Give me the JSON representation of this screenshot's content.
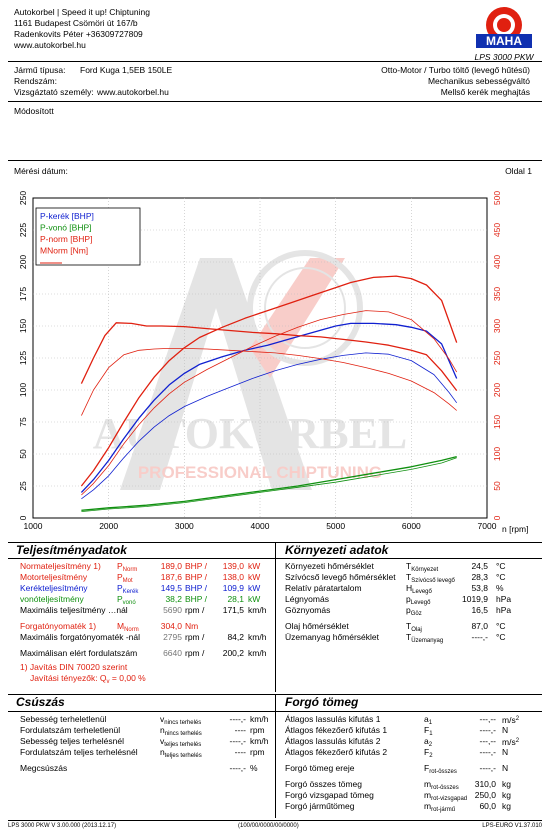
{
  "header": {
    "company_lines": [
      "Autokorbel | Speed it up! Chiptuning",
      "1161 Budapest Csömöri út 167/b",
      "Radenkovits Péter +36309727809",
      "www.autokorbel.hu"
    ],
    "logo_ring_text": "Maschinenbau Haldenwang",
    "logo_brand": "MAHA",
    "device": "LPS 3000 PKW"
  },
  "vehicle": {
    "type_label": "Jármű típusa:",
    "type_value": "Ford Kuga 1,5EB 150LE",
    "reg_label": "Rendszám:",
    "tester_label": "Vizsgáztató személy:",
    "tester_value": "www.autokorbel.hu",
    "engine": "Otto-Motor / Turbo töltő (levegő hűtésű)",
    "gearbox": "Mechanikus sebességváltó",
    "drive": "Mellső kerék meghajtás",
    "modified": "Módosított",
    "date_label": "Mérési dátum:",
    "page": "Oldal 1"
  },
  "chart_data": {
    "type": "line",
    "xlabel": "n [rpm]",
    "xlim": [
      1000,
      7000
    ],
    "ylim_left": [
      0,
      250
    ],
    "ylim_right": [
      0,
      500
    ],
    "x_ticks": [
      "1000",
      "2000",
      "3000",
      "4000",
      "5000",
      "6000",
      "7000"
    ],
    "y_ticks_left": [
      "0",
      "25",
      "50",
      "75",
      "100",
      "125",
      "150",
      "175",
      "200",
      "225",
      "250"
    ],
    "y_ticks_right": [
      "0",
      "50",
      "100",
      "150",
      "200",
      "250",
      "300",
      "350",
      "400",
      "450",
      "500"
    ],
    "legend": [
      {
        "label": "P-kerék [BHP]",
        "color": "#1020d0"
      },
      {
        "label": "P-vonó [BHP]",
        "color": "#109010"
      },
      {
        "label": "P-norm [BHP]",
        "color": "#e02010"
      },
      {
        "label": "MNorm [Nm]",
        "color": "#e02010"
      }
    ],
    "series": [
      {
        "name": "P-kerék [BHP]",
        "axis": "left",
        "color": "#1020d0",
        "width": 1.3,
        "x": [
          1640,
          1800,
          2000,
          2200,
          2400,
          2600,
          2800,
          3000,
          3200,
          3500,
          3800,
          4100,
          4400,
          4700,
          5000,
          5200,
          5500,
          5800,
          6000,
          6200,
          6400,
          6600
        ],
        "y": [
          20,
          30,
          45,
          62,
          78,
          92,
          104,
          113,
          120,
          126,
          131,
          135,
          140,
          145,
          150,
          152,
          152,
          151,
          149,
          146,
          136,
          109
        ]
      },
      {
        "name": "P-kerék (base)",
        "axis": "left",
        "color": "#1020d0",
        "width": 0.8,
        "x": [
          1640,
          1800,
          2000,
          2200,
          2400,
          2600,
          2800,
          3000,
          3300,
          3600,
          3900,
          4200,
          4500,
          4800,
          5100,
          5400,
          5700,
          6000,
          6300,
          6500,
          6600
        ],
        "y": [
          15,
          22,
          33,
          47,
          60,
          71,
          80,
          87,
          95,
          102,
          109,
          115,
          120,
          124,
          127,
          129,
          128,
          123,
          112,
          98,
          90
        ]
      },
      {
        "name": "P-norm [BHP]",
        "axis": "left",
        "color": "#e02010",
        "width": 1.3,
        "x": [
          1640,
          1800,
          2000,
          2200,
          2400,
          2600,
          2800,
          3000,
          3200,
          3500,
          3800,
          4100,
          4400,
          4700,
          5000,
          5200,
          5500,
          5800,
          6000,
          6200,
          6400,
          6600
        ],
        "y": [
          25,
          37,
          55,
          75,
          94,
          110,
          123,
          133,
          141,
          149,
          156,
          162,
          168,
          174,
          180,
          184,
          188,
          189,
          187,
          182,
          170,
          137
        ]
      },
      {
        "name": "P-norm (base)",
        "axis": "left",
        "color": "#e02010",
        "width": 0.8,
        "x": [
          1640,
          1800,
          2000,
          2200,
          2400,
          2600,
          2800,
          3000,
          3300,
          3600,
          3900,
          4200,
          4500,
          4800,
          5100,
          5400,
          5700,
          6000,
          6300,
          6500,
          6600
        ],
        "y": [
          18,
          27,
          41,
          58,
          73,
          86,
          97,
          106,
          116,
          125,
          134,
          142,
          149,
          155,
          159,
          162,
          161,
          155,
          140,
          124,
          114
        ]
      },
      {
        "name": "MNorm [Nm]",
        "axis": "right",
        "color": "#e02010",
        "width": 1.3,
        "x": [
          1640,
          1800,
          1950,
          2100,
          2300,
          2500,
          2700,
          3000,
          3300,
          3600,
          3900,
          4200,
          4500,
          4800,
          5100,
          5400,
          5700,
          6000,
          6200,
          6400,
          6600
        ],
        "y": [
          210,
          250,
          285,
          305,
          304,
          300,
          300,
          299,
          296,
          293,
          290,
          288,
          285,
          283,
          279,
          275,
          270,
          262,
          255,
          230,
          199
        ]
      },
      {
        "name": "MNorm (base)",
        "axis": "right",
        "color": "#e02010",
        "width": 0.8,
        "x": [
          1640,
          1800,
          2000,
          2200,
          2400,
          2600,
          2800,
          3000,
          3300,
          3600,
          3900,
          4200,
          4500,
          4800,
          5100,
          5400,
          5700,
          6000,
          6300,
          6500,
          6600
        ],
        "y": [
          160,
          200,
          235,
          255,
          262,
          264,
          265,
          265,
          264,
          262,
          260,
          258,
          254,
          249,
          243,
          235,
          226,
          214,
          196,
          178,
          168
        ]
      },
      {
        "name": "P-vonó [BHP]",
        "axis": "left",
        "color": "#109010",
        "width": 1.3,
        "x": [
          1640,
          2000,
          2500,
          3000,
          3500,
          4000,
          4500,
          5000,
          5500,
          6000,
          6400,
          6600
        ],
        "y": [
          6,
          8,
          10,
          13,
          17,
          21,
          25,
          30,
          35,
          40,
          45,
          48
        ]
      },
      {
        "name": "P-vonó (base)",
        "axis": "left",
        "color": "#109010",
        "width": 0.8,
        "x": [
          1640,
          2000,
          2500,
          3000,
          3500,
          4000,
          4500,
          5000,
          5500,
          6000,
          6400,
          6600
        ],
        "y": [
          5,
          7,
          9,
          12,
          16,
          20,
          24,
          28,
          33,
          38,
          43,
          47
        ]
      }
    ]
  },
  "watermark": {
    "line1": "AUTOKORBEL",
    "line2": "PROFESSIONAL CHIPTUNING"
  },
  "performance": {
    "title": "Teljesítményadatok",
    "rows": [
      {
        "label": "Normateljesítmény",
        "note": "1)",
        "sym": "P",
        "sub": "Norm",
        "v1": "189,0",
        "u1": "BHP",
        "v2": "139,0",
        "u2": "kW",
        "cls": "red"
      },
      {
        "label": "Motorteljesítmény",
        "note": "",
        "sym": "P",
        "sub": "Mot",
        "v1": "187,6",
        "u1": "BHP",
        "v2": "138,0",
        "u2": "kW",
        "cls": "red"
      },
      {
        "label": "Kerékteljesítmény",
        "note": "",
        "sym": "P",
        "sub": "Kerék",
        "v1": "149,5",
        "u1": "BHP",
        "v2": "109,9",
        "u2": "kW",
        "cls": "blue"
      },
      {
        "label": "vonóteljesítmény",
        "note": "",
        "sym": "P",
        "sub": "vonó",
        "v1": "38,2",
        "u1": "BHP",
        "v2": "28,1",
        "u2": "kW",
        "cls": "green"
      },
      {
        "label": "Maximális teljesítmény …nál",
        "note": "",
        "sym": "",
        "sub": "",
        "v1": "5690",
        "u1": "rpm",
        "v2": "171,5",
        "u2": "km/h",
        "cls": "grey1"
      },
      {
        "label": "Forgatónyomaték",
        "note": "1)",
        "sym": "M",
        "sub": "Norm",
        "v1": "304,0",
        "u1": "Nm",
        "v2": "",
        "u2": "",
        "cls": "red"
      },
      {
        "label": "Maximális forgatónyomaték -nál",
        "note": "",
        "sym": "",
        "sub": "",
        "v1": "2795",
        "u1": "rpm",
        "v2": "84,2",
        "u2": "km/h",
        "cls": "grey1"
      },
      {
        "label": "Maximálisan elért fordulatszám",
        "note": "",
        "sym": "",
        "sub": "",
        "v1": "6640",
        "u1": "rpm",
        "v2": "200,2",
        "u2": "km/h",
        "cls": "grey1"
      }
    ],
    "din_note": "1) Javítás DIN 70020 szerint",
    "factor": "Javítási tényezők: Q",
    "factor_sub": "v",
    "factor_val": "=   0,00 %"
  },
  "environment": {
    "title": "Környezeti adatok",
    "rows": [
      {
        "label": "Környezeti hőmérséklet",
        "sym": "T",
        "sub": "Környezet",
        "v": "24,5",
        "u": "°C"
      },
      {
        "label": "Szívócső levegő hőmérséklet",
        "sym": "T",
        "sub": "Szívócső levegő",
        "v": "28,3",
        "u": "°C"
      },
      {
        "label": "Relatív páratartalom",
        "sym": "H",
        "sub": "Levegő",
        "v": "53,8",
        "u": "%"
      },
      {
        "label": "Légnyomás",
        "sym": "p",
        "sub": "Levegő",
        "v": "1019,9",
        "u": "hPa"
      },
      {
        "label": "Göznyomás",
        "sym": "p",
        "sub": "Göz",
        "v": "16,5",
        "u": "hPa"
      },
      {
        "label": "Olaj hőmérséklet",
        "sym": "T",
        "sub": "Olaj",
        "v": "87,0",
        "u": "°C"
      },
      {
        "label": "Üzemanyag hőmérséklet",
        "sym": "T",
        "sub": "Üzemanyag",
        "v": "----,-",
        "u": "°C"
      }
    ]
  },
  "slip": {
    "title": "Csúszás",
    "rows": [
      {
        "label": "Sebesség terheletlenül",
        "sym": "v",
        "sub": "nincs terhelés",
        "v": "----,-",
        "u": "km/h"
      },
      {
        "label": "Fordulatszám terheletlenül",
        "sym": "n",
        "sub": "nincs terhelés",
        "v": "----",
        "u": "rpm"
      },
      {
        "label": "Sebesség teljes terhelésnél",
        "sym": "v",
        "sub": "teljes terhelés",
        "v": "----,-",
        "u": "km/h"
      },
      {
        "label": "Fordulatszám teljes terhelésnél",
        "sym": "n",
        "sub": "teljes terhelés",
        "v": "----",
        "u": "rpm"
      },
      {
        "label": "Megcsúszás",
        "sym": "",
        "sub": "",
        "v": "----,-",
        "u": "%"
      }
    ]
  },
  "mass": {
    "title": "Forgó tömeg",
    "rows": [
      {
        "label": "Átlagos lassulás kifutás 1",
        "sym": "a",
        "sub": "1",
        "v": "---,--",
        "u": "m/s2"
      },
      {
        "label": "Átlagos fékezőerő kifutás 1",
        "sym": "F",
        "sub": "1",
        "v": "----,-",
        "u": "N"
      },
      {
        "label": "Átlagos lassulás kifutás 2",
        "sym": "a",
        "sub": "2",
        "v": "---,--",
        "u": "m/s2"
      },
      {
        "label": "Átlagos fékezőerő kifutás 2",
        "sym": "F",
        "sub": "2",
        "v": "----,-",
        "u": "N"
      },
      {
        "label": "Forgó tömeg ereje",
        "sym": "F",
        "sub": "rot-összes",
        "v": "----,-",
        "u": "N"
      },
      {
        "label": "Forgó összes tömeg",
        "sym": "m",
        "sub": "rot-összes",
        "v": "310,0",
        "u": "kg"
      },
      {
        "label": "Forgó vizsgapad tömeg",
        "sym": "m",
        "sub": "rot-vizsgapad",
        "v": "250,0",
        "u": "kg"
      },
      {
        "label": "Forgó járműtömeg",
        "sym": "m",
        "sub": "rot-jármű",
        "v": "60,0",
        "u": "kg"
      }
    ]
  },
  "footer": {
    "left": "LPS 3000 PKW V 3.00.000 (2013.12.17)",
    "center": "(100/00/0000/00/0000)",
    "right": "LPS-EURO V1.37.010"
  }
}
